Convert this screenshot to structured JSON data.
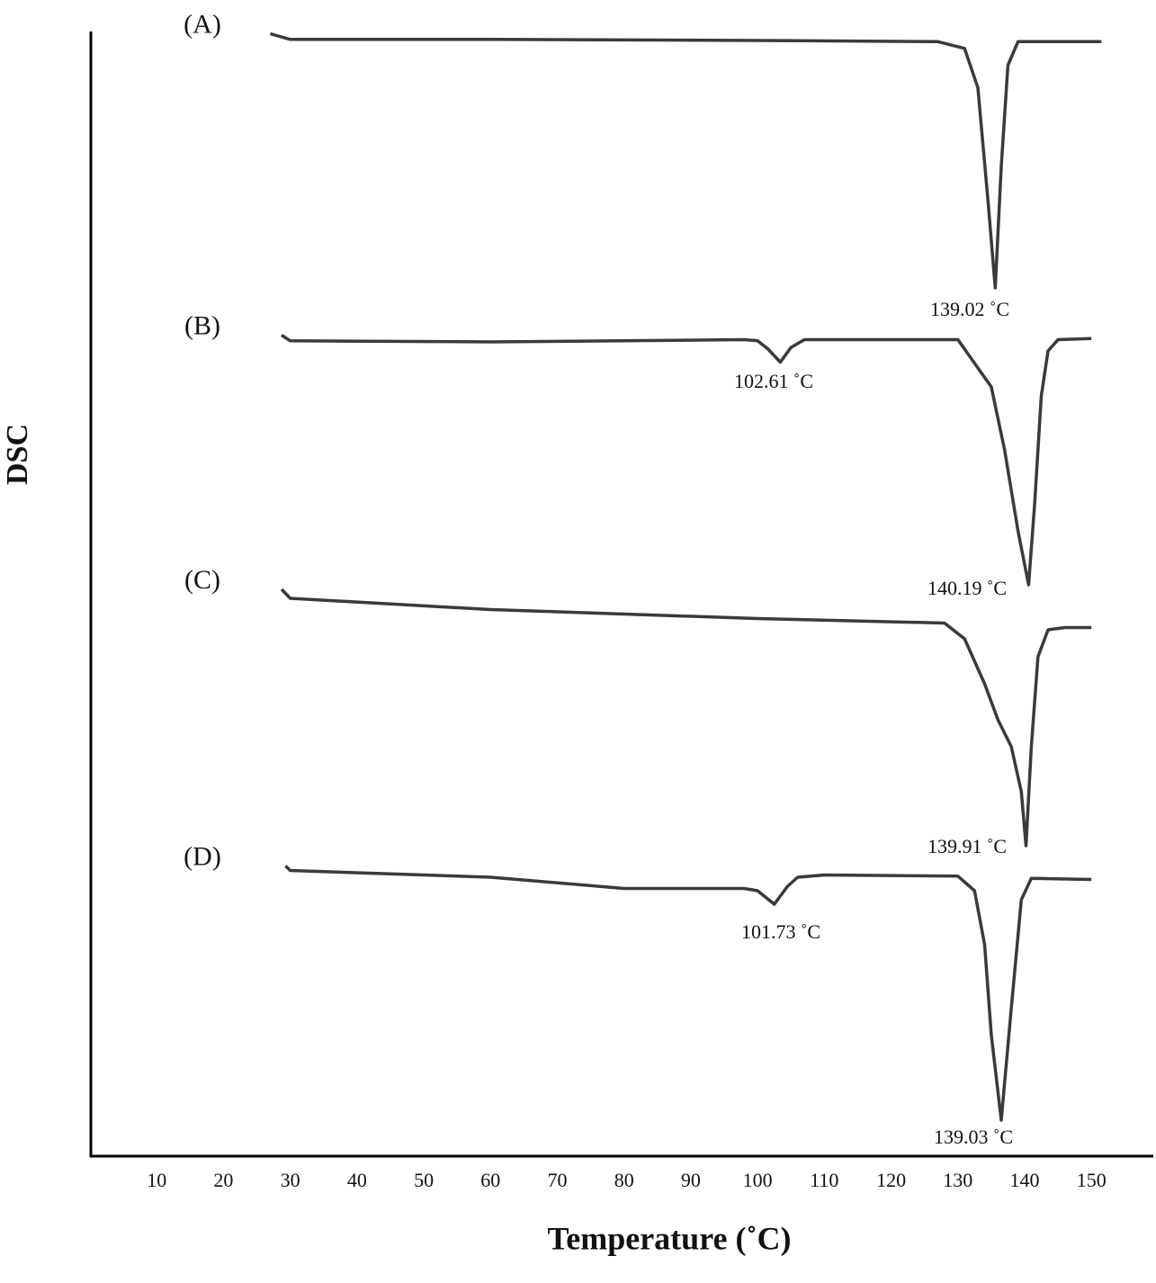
{
  "chart_data": {
    "type": "line",
    "xlabel": "Temperature (˚C)",
    "ylabel": "DSC",
    "xlim": [
      0,
      159
    ],
    "xticks": [
      10,
      20,
      30,
      40,
      50,
      60,
      70,
      80,
      90,
      100,
      110,
      120,
      130,
      140,
      150
    ],
    "ylim": [
      0,
      100
    ],
    "color": "#3a3a3a",
    "series": [
      {
        "name": "(A)",
        "x": [
          27,
          30,
          60,
          100,
          127,
          131,
          133,
          134.5,
          135.6,
          136.5,
          137.5,
          139,
          147,
          151.5
        ],
        "values": [
          99.8,
          99.3,
          99.3,
          99.2,
          99.1,
          98.5,
          95,
          85,
          77.2,
          88,
          97,
          99.1,
          99.1,
          99.1
        ]
      },
      {
        "name": "(B)",
        "x": [
          28.7,
          30,
          60,
          98,
          100,
          101.5,
          103.4,
          105,
          107,
          130,
          135,
          137,
          139,
          140.6,
          141.5,
          142.5,
          143.5,
          145,
          150
        ],
        "values": [
          73,
          72.5,
          72.4,
          72.6,
          72.5,
          71.8,
          70.6,
          71.9,
          72.6,
          72.6,
          68.4,
          62.8,
          55.6,
          50.8,
          58,
          67.6,
          71.6,
          72.6,
          72.7
        ]
      },
      {
        "name": "(C)",
        "x": [
          28.7,
          30,
          60,
          100,
          128,
          131,
          134,
          136,
          138,
          139.5,
          140.2,
          141,
          142,
          143.5,
          146,
          150
        ],
        "values": [
          50.4,
          49.6,
          48.6,
          47.8,
          47.4,
          46,
          42,
          38.8,
          36.4,
          32.4,
          27.6,
          36.4,
          44.4,
          46.8,
          47,
          47
        ]
      },
      {
        "name": "(D)",
        "x": [
          29.3,
          30,
          60,
          80,
          98,
          100,
          102.5,
          104.5,
          106,
          110,
          130,
          132.5,
          134,
          135,
          136.5,
          138,
          139.5,
          141,
          150
        ],
        "values": [
          25.8,
          25.4,
          24.8,
          23.8,
          23.8,
          23.6,
          22.4,
          24,
          24.8,
          25,
          24.9,
          23.6,
          18.8,
          10.8,
          3.2,
          13.2,
          22.8,
          24.7,
          24.6
        ]
      }
    ],
    "annotations": [
      "139.02 ˚C",
      "102.61 ˚C",
      "140.19 ˚C",
      "139.91 ˚C",
      "101.73 ˚C",
      "139.03 ˚C"
    ]
  }
}
